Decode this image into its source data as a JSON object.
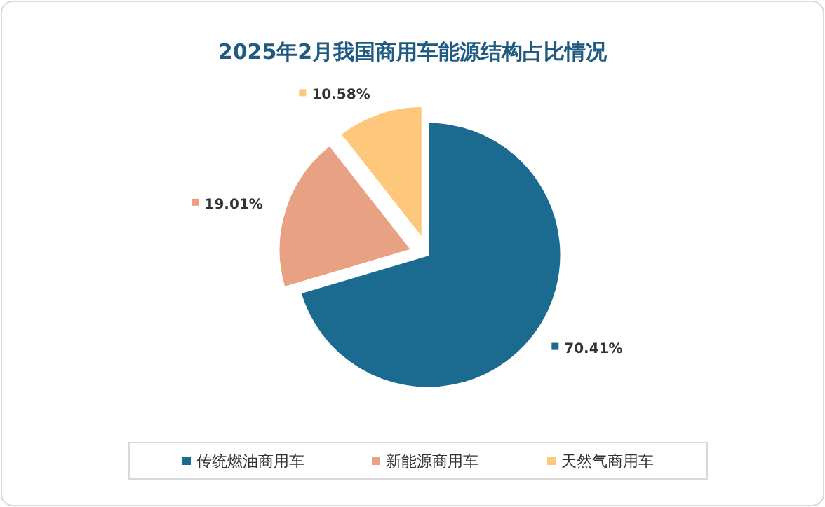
{
  "chart_data": {
    "type": "pie",
    "title": "2025年2月我国商用车能源结构占比情况",
    "categories": [
      "传统燃油商用车",
      "新能源商用车",
      "天然气商用车"
    ],
    "values": [
      70.41,
      19.01,
      10.58
    ],
    "colors": [
      "#1b6a8f",
      "#e8a283",
      "#fdc77c"
    ],
    "value_labels": [
      "70.41%",
      "19.01%",
      "10.58%"
    ],
    "legend": "bottom"
  }
}
